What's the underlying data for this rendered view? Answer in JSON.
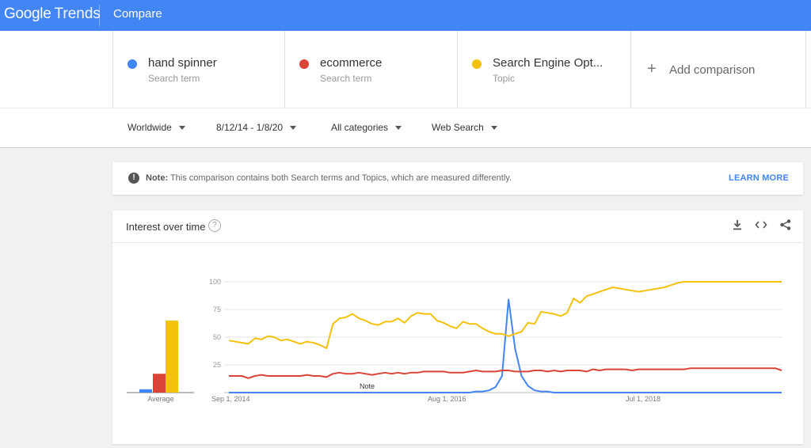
{
  "header": {
    "logo_google": "Google",
    "logo_trends": "Trends",
    "page_title": "Compare"
  },
  "colors": {
    "blue": "#4285f4",
    "red": "#db4437",
    "yellow": "#f4c20d",
    "header": "#4285f4"
  },
  "terms": [
    {
      "name": "hand spinner",
      "type": "Search term",
      "color": "#4285f4"
    },
    {
      "name": "ecommerce",
      "type": "Search term",
      "color": "#db4437"
    },
    {
      "name": "Search Engine Opt...",
      "type": "Topic",
      "color": "#f4c20d"
    }
  ],
  "add_comparison": {
    "icon": "plus-icon",
    "plus": "+",
    "label": "Add comparison"
  },
  "filters": {
    "region": "Worldwide",
    "date": "8/12/14 - 1/8/20",
    "category": "All categories",
    "property": "Web Search"
  },
  "note_banner": {
    "icon": "info-icon",
    "bold": "Note:",
    "text": " This comparison contains both Search terms and Topics, which are measured differently.",
    "link": "LEARN MORE"
  },
  "chart_card": {
    "title": "Interest over time",
    "help_icon": "help-icon",
    "help": "?",
    "download_icon": "download-icon",
    "embed_icon": "embed-icon",
    "share_icon": "share-icon"
  },
  "chart_data": {
    "type": "line",
    "yticks": [
      25,
      50,
      75,
      100
    ],
    "ylim": [
      0,
      100
    ],
    "x_labels": [
      "Sep 1, 2014",
      "Aug 1, 2016",
      "Jul 1, 2018"
    ],
    "annotation": "Note",
    "average": {
      "label": "Average",
      "values": [
        3,
        17,
        65
      ]
    },
    "series": [
      {
        "name": "hand spinner",
        "color": "#4285f4",
        "values": [
          0,
          0,
          0,
          0,
          0,
          0,
          0,
          0,
          0,
          0,
          0,
          0,
          0,
          0,
          0,
          0,
          0,
          0,
          0,
          0,
          0,
          0,
          0,
          0,
          0,
          0,
          0,
          0,
          0,
          0,
          0,
          0,
          0,
          0,
          0,
          0,
          0,
          0,
          1,
          1,
          2,
          5,
          15,
          84,
          40,
          15,
          6,
          2,
          1,
          1,
          0,
          0,
          0,
          0,
          0,
          0,
          0,
          0,
          0,
          0,
          0,
          0,
          0,
          0,
          0,
          0,
          0,
          0,
          0,
          0,
          0,
          0,
          0,
          0,
          0,
          0,
          0,
          0,
          0,
          0,
          0,
          0,
          0,
          0,
          0,
          0
        ]
      },
      {
        "name": "ecommerce",
        "color": "#db4437",
        "values": [
          15,
          15,
          15,
          13,
          15,
          16,
          15,
          15,
          15,
          15,
          15,
          15,
          16,
          15,
          15,
          14,
          17,
          18,
          17,
          17,
          18,
          17,
          16,
          17,
          18,
          17,
          18,
          17,
          18,
          18,
          19,
          19,
          19,
          19,
          18,
          18,
          18,
          19,
          20,
          19,
          19,
          19,
          20,
          20,
          19,
          19,
          19,
          20,
          20,
          19,
          20,
          19,
          20,
          20,
          20,
          19,
          21,
          20,
          21,
          21,
          21,
          21,
          20,
          21,
          21,
          21,
          21,
          21,
          21,
          21,
          21,
          22,
          22,
          22,
          22,
          22,
          22,
          22,
          22,
          22,
          22,
          22,
          22,
          22,
          22,
          20
        ]
      },
      {
        "name": "Search Engine Opt...",
        "color": "#f4c20d",
        "values": [
          47,
          46,
          45,
          44,
          49,
          48,
          51,
          50,
          47,
          48,
          46,
          44,
          46,
          45,
          43,
          40,
          62,
          67,
          68,
          71,
          67,
          65,
          62,
          61,
          64,
          64,
          67,
          63,
          69,
          72,
          71,
          71,
          65,
          63,
          60,
          58,
          64,
          62,
          62,
          58,
          55,
          53,
          53,
          51,
          53,
          55,
          63,
          62,
          73,
          72,
          71,
          69,
          72,
          85,
          81,
          87,
          89,
          91,
          93,
          95,
          94,
          93,
          92,
          91,
          92,
          93,
          94,
          95,
          97,
          99,
          100,
          100,
          100,
          100,
          100,
          100,
          100,
          100,
          100,
          100,
          100,
          100,
          100,
          100,
          100,
          100
        ]
      }
    ]
  }
}
